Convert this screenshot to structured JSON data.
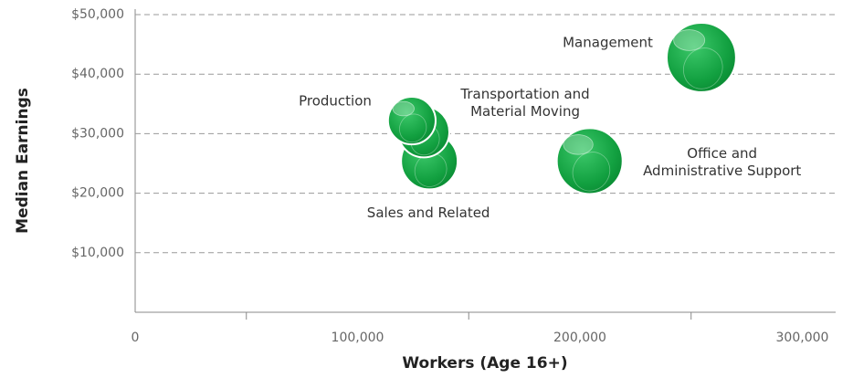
{
  "chart_data": {
    "type": "bubble",
    "xlabel": "Workers (Age 16+)",
    "ylabel": "Median Earnings",
    "color": "#1aa34a",
    "series": [
      {
        "labels": [
          [
            "Management"
          ],
          [
            "Office and",
            "Administrative Support"
          ],
          [
            "Sales and Related"
          ],
          [
            "Transportation and",
            "Material Moving"
          ],
          [
            "Production"
          ]
        ],
        "x": [
          254600,
          204400,
          132300,
          129800,
          124400
        ],
        "values": [
          42800,
          25400,
          25400,
          30300,
          32200
        ],
        "sizes": [
          1440,
          1300,
          960,
          780,
          680
        ]
      }
    ],
    "xlim": [
      0,
      315000
    ],
    "ylim": [
      0,
      50000
    ],
    "xticks": [
      0,
      {
        "value": 100000,
        "label": "100,000"
      },
      {
        "value": 200000,
        "label": "200,000"
      },
      {
        "value": 300000,
        "label": "300,000"
      }
    ],
    "xtick_marks": [
      50000,
      150000,
      250000
    ],
    "yticks": [
      {
        "value": 10000,
        "label": "$10,000"
      },
      {
        "value": 20000,
        "label": "$20,000"
      },
      {
        "value": 30000,
        "label": "$30,000"
      },
      {
        "value": 40000,
        "label": "$40,000"
      },
      {
        "value": 50000,
        "label": "$50,000"
      }
    ],
    "grid": true
  }
}
